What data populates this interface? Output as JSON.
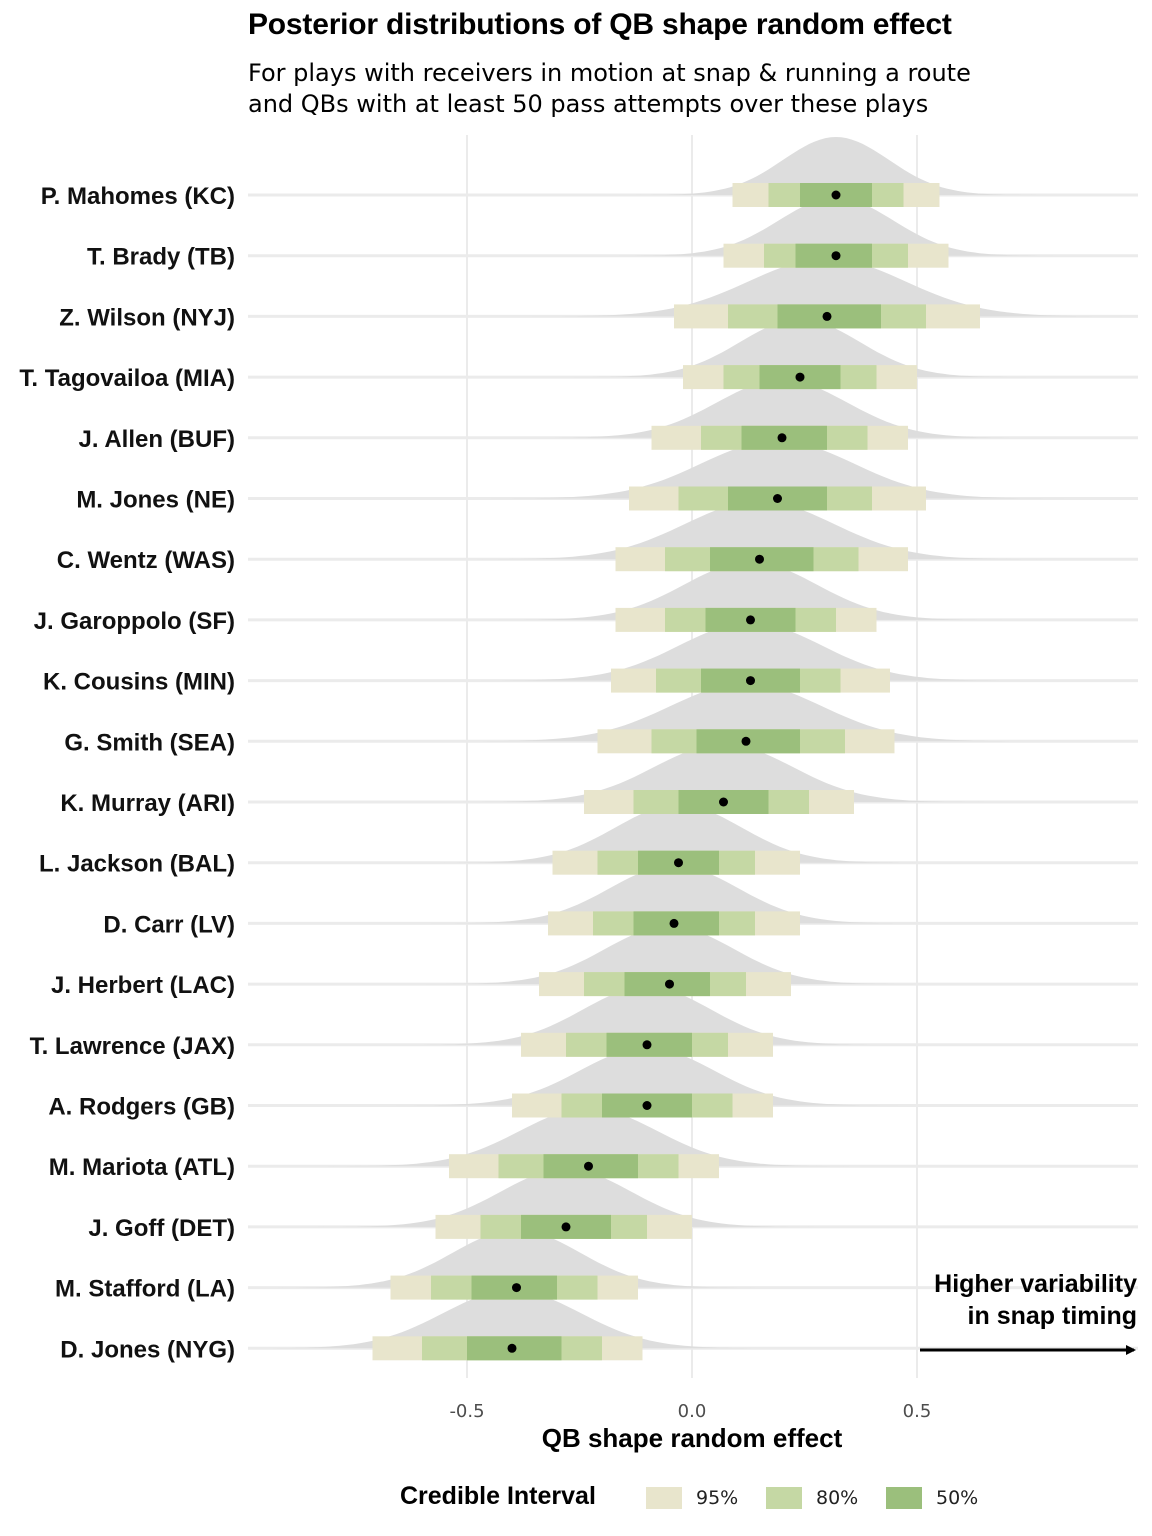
{
  "title": "Posterior distributions of QB shape random effect",
  "subtitle": [
    "For plays with receivers in motion at snap & running a route",
    "and QBs with at least 50 pass attempts over these plays"
  ],
  "annotation": [
    "Higher variability",
    "in snap timing"
  ],
  "legend": {
    "title": "Credible Interval",
    "items": [
      {
        "label": "95%",
        "color": "#e8e5cc"
      },
      {
        "label": "80%",
        "color": "#c5d8a4"
      },
      {
        "label": "50%",
        "color": "#9bbf7c"
      }
    ]
  },
  "colors": {
    "density": "#dddddd",
    "grid": "#ebebeb",
    "point": "#000000",
    "i95": "#e8e5cc",
    "i80": "#c5d8a4",
    "i50": "#9bbf7c"
  },
  "chart_data": {
    "type": "interval",
    "xlabel": "QB shape random effect",
    "xlim": [
      -1.0,
      1.0
    ],
    "xticks": [
      -0.5,
      0.0,
      0.5
    ],
    "xtick_labels": [
      "-0.5",
      "0.0",
      "0.5"
    ],
    "players": [
      {
        "name": "P. Mahomes (KC)",
        "median": 0.32,
        "i95": [
          0.09,
          0.55
        ],
        "i80": [
          0.17,
          0.47
        ],
        "i50": [
          0.24,
          0.4
        ]
      },
      {
        "name": "T. Brady (TB)",
        "median": 0.32,
        "i95": [
          0.07,
          0.57
        ],
        "i80": [
          0.16,
          0.48
        ],
        "i50": [
          0.23,
          0.4
        ]
      },
      {
        "name": "Z. Wilson (NYJ)",
        "median": 0.3,
        "i95": [
          -0.04,
          0.64
        ],
        "i80": [
          0.08,
          0.52
        ],
        "i50": [
          0.19,
          0.42
        ]
      },
      {
        "name": "T. Tagovailoa (MIA)",
        "median": 0.24,
        "i95": [
          -0.02,
          0.5
        ],
        "i80": [
          0.07,
          0.41
        ],
        "i50": [
          0.15,
          0.33
        ]
      },
      {
        "name": "J. Allen (BUF)",
        "median": 0.2,
        "i95": [
          -0.09,
          0.48
        ],
        "i80": [
          0.02,
          0.39
        ],
        "i50": [
          0.11,
          0.3
        ]
      },
      {
        "name": "M. Jones (NE)",
        "median": 0.19,
        "i95": [
          -0.14,
          0.52
        ],
        "i80": [
          -0.03,
          0.4
        ],
        "i50": [
          0.08,
          0.3
        ]
      },
      {
        "name": "C. Wentz (WAS)",
        "median": 0.15,
        "i95": [
          -0.17,
          0.48
        ],
        "i80": [
          -0.06,
          0.37
        ],
        "i50": [
          0.04,
          0.27
        ]
      },
      {
        "name": "J. Garoppolo (SF)",
        "median": 0.13,
        "i95": [
          -0.17,
          0.41
        ],
        "i80": [
          -0.06,
          0.32
        ],
        "i50": [
          0.03,
          0.23
        ]
      },
      {
        "name": "K. Cousins (MIN)",
        "median": 0.13,
        "i95": [
          -0.18,
          0.44
        ],
        "i80": [
          -0.08,
          0.33
        ],
        "i50": [
          0.02,
          0.24
        ]
      },
      {
        "name": "G. Smith (SEA)",
        "median": 0.12,
        "i95": [
          -0.21,
          0.45
        ],
        "i80": [
          -0.09,
          0.34
        ],
        "i50": [
          0.01,
          0.24
        ]
      },
      {
        "name": "K. Murray (ARI)",
        "median": 0.07,
        "i95": [
          -0.24,
          0.36
        ],
        "i80": [
          -0.13,
          0.26
        ],
        "i50": [
          -0.03,
          0.17
        ]
      },
      {
        "name": "L. Jackson (BAL)",
        "median": -0.03,
        "i95": [
          -0.31,
          0.24
        ],
        "i80": [
          -0.21,
          0.14
        ],
        "i50": [
          -0.12,
          0.06
        ]
      },
      {
        "name": "D. Carr (LV)",
        "median": -0.04,
        "i95": [
          -0.32,
          0.24
        ],
        "i80": [
          -0.22,
          0.14
        ],
        "i50": [
          -0.13,
          0.06
        ]
      },
      {
        "name": "J. Herbert (LAC)",
        "median": -0.05,
        "i95": [
          -0.34,
          0.22
        ],
        "i80": [
          -0.24,
          0.12
        ],
        "i50": [
          -0.15,
          0.04
        ]
      },
      {
        "name": "T. Lawrence (JAX)",
        "median": -0.1,
        "i95": [
          -0.38,
          0.18
        ],
        "i80": [
          -0.28,
          0.08
        ],
        "i50": [
          -0.19,
          0.0
        ]
      },
      {
        "name": "A. Rodgers (GB)",
        "median": -0.1,
        "i95": [
          -0.4,
          0.18
        ],
        "i80": [
          -0.29,
          0.09
        ],
        "i50": [
          -0.2,
          0.0
        ]
      },
      {
        "name": "M. Mariota (ATL)",
        "median": -0.23,
        "i95": [
          -0.54,
          0.06
        ],
        "i80": [
          -0.43,
          -0.03
        ],
        "i50": [
          -0.33,
          -0.12
        ]
      },
      {
        "name": "J. Goff (DET)",
        "median": -0.28,
        "i95": [
          -0.57,
          0.0
        ],
        "i80": [
          -0.47,
          -0.1
        ],
        "i50": [
          -0.38,
          -0.18
        ]
      },
      {
        "name": "M. Stafford (LA)",
        "median": -0.39,
        "i95": [
          -0.67,
          -0.12
        ],
        "i80": [
          -0.58,
          -0.21
        ],
        "i50": [
          -0.49,
          -0.3
        ]
      },
      {
        "name": "D. Jones (NYG)",
        "median": -0.4,
        "i95": [
          -0.71,
          -0.11
        ],
        "i80": [
          -0.6,
          -0.2
        ],
        "i50": [
          -0.5,
          -0.29
        ]
      }
    ]
  }
}
